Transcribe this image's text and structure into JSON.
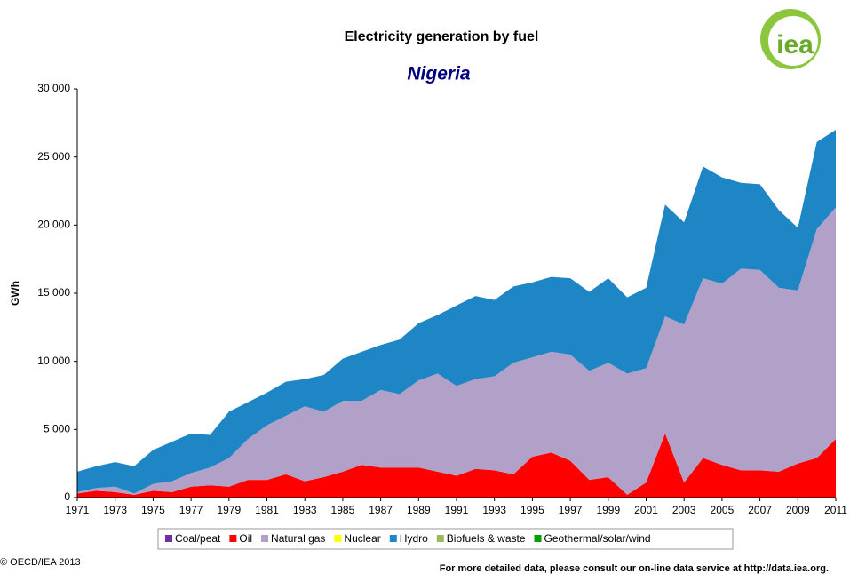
{
  "chart_data": {
    "type": "stacked_area",
    "title": "Electricity generation by fuel",
    "subtitle": "Nigeria",
    "ylabel": "GWh",
    "logo": "iea",
    "copyright": "© OECD/IEA 2013",
    "footer": "For more detailed data, please consult our on-line data service at http://data.iea.org.",
    "x": [
      1971,
      1972,
      1973,
      1974,
      1975,
      1976,
      1977,
      1978,
      1979,
      1980,
      1981,
      1982,
      1983,
      1984,
      1985,
      1986,
      1987,
      1988,
      1989,
      1990,
      1991,
      1992,
      1993,
      1994,
      1995,
      1996,
      1997,
      1998,
      1999,
      2000,
      2001,
      2002,
      2003,
      2004,
      2005,
      2006,
      2007,
      2008,
      2009,
      2010,
      2011
    ],
    "xlim": [
      1971,
      2011
    ],
    "xticks": [
      1971,
      1973,
      1975,
      1977,
      1979,
      1981,
      1983,
      1985,
      1987,
      1989,
      1991,
      1993,
      1995,
      1997,
      1999,
      2001,
      2003,
      2005,
      2007,
      2009,
      2011
    ],
    "ylim": [
      0,
      30000
    ],
    "yticks": [
      0,
      {
        "value": 5000,
        "label": "5 000"
      },
      {
        "value": 10000,
        "label": "10 000"
      },
      {
        "value": 15000,
        "label": "15 000"
      },
      {
        "value": 20000,
        "label": "20 000"
      },
      {
        "value": 25000,
        "label": "25 000"
      },
      {
        "value": 30000,
        "label": "30 000"
      }
    ],
    "grid": false,
    "series": [
      {
        "name": "Coal/peat",
        "color": "#7030a0",
        "values": [
          0,
          0,
          0,
          0,
          0,
          0,
          0,
          0,
          0,
          0,
          0,
          0,
          0,
          0,
          0,
          0,
          0,
          0,
          0,
          0,
          0,
          0,
          0,
          0,
          0,
          0,
          0,
          0,
          0,
          0,
          0,
          0,
          0,
          0,
          0,
          0,
          0,
          0,
          0,
          0,
          0
        ]
      },
      {
        "name": "Oil",
        "color": "#ff0000",
        "values": [
          300,
          500,
          400,
          200,
          500,
          400,
          800,
          900,
          800,
          1300,
          1300,
          1700,
          1200,
          1500,
          1900,
          2400,
          2200,
          2200,
          2200,
          1900,
          1600,
          2100,
          2000,
          1700,
          3000,
          3300,
          2700,
          1300,
          1500,
          200,
          1100,
          4700,
          1100,
          2900,
          2400,
          2000,
          2000,
          1900,
          2500,
          2900,
          4300
        ]
      },
      {
        "name": "Natural gas",
        "color": "#b1a0c7",
        "values": [
          100,
          200,
          400,
          100,
          500,
          800,
          1000,
          1300,
          2100,
          3000,
          4000,
          4300,
          5500,
          4800,
          5200,
          4700,
          5700,
          5400,
          6400,
          7200,
          6600,
          6600,
          6900,
          8200,
          7300,
          7400,
          7800,
          8000,
          8400,
          8900,
          8400,
          8600,
          11600,
          13200,
          13300,
          14800,
          14700,
          13500,
          12700,
          16800,
          17000
        ]
      },
      {
        "name": "Nuclear",
        "color": "#ffff00",
        "values": [
          0,
          0,
          0,
          0,
          0,
          0,
          0,
          0,
          0,
          0,
          0,
          0,
          0,
          0,
          0,
          0,
          0,
          0,
          0,
          0,
          0,
          0,
          0,
          0,
          0,
          0,
          0,
          0,
          0,
          0,
          0,
          0,
          0,
          0,
          0,
          0,
          0,
          0,
          0,
          0,
          0
        ]
      },
      {
        "name": "Hydro",
        "color": "#1f86c6",
        "values": [
          1500,
          1600,
          1800,
          2000,
          2500,
          2900,
          2900,
          2400,
          3400,
          2700,
          2400,
          2500,
          2000,
          2700,
          3100,
          3600,
          3300,
          4000,
          4200,
          4300,
          5900,
          6100,
          5600,
          5600,
          5500,
          5500,
          5600,
          5800,
          6200,
          5600,
          5900,
          8200,
          7500,
          8200,
          7800,
          6300,
          6300,
          5700,
          4600,
          6400,
          5700
        ]
      },
      {
        "name": "Biofuels & waste",
        "color": "#9bbb59",
        "values": [
          0,
          0,
          0,
          0,
          0,
          0,
          0,
          0,
          0,
          0,
          0,
          0,
          0,
          0,
          0,
          0,
          0,
          0,
          0,
          0,
          0,
          0,
          0,
          0,
          0,
          0,
          0,
          0,
          0,
          0,
          0,
          0,
          0,
          0,
          0,
          0,
          0,
          0,
          0,
          0,
          0
        ]
      },
      {
        "name": "Geothermal/solar/wind",
        "color": "#00a000",
        "values": [
          0,
          0,
          0,
          0,
          0,
          0,
          0,
          0,
          0,
          0,
          0,
          0,
          0,
          0,
          0,
          0,
          0,
          0,
          0,
          0,
          0,
          0,
          0,
          0,
          0,
          0,
          0,
          0,
          0,
          0,
          0,
          0,
          0,
          0,
          0,
          0,
          0,
          0,
          0,
          0,
          0
        ]
      }
    ]
  }
}
